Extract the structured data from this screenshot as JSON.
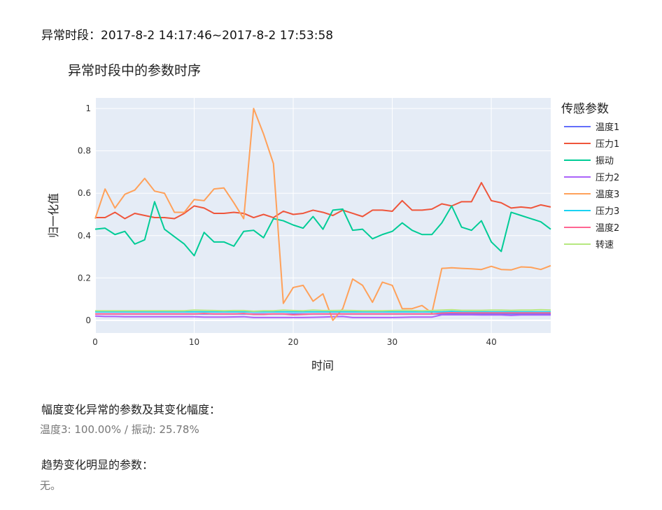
{
  "header": {
    "period_label": "异常时段：",
    "period_value": "2017-8-2 14:17:46~2017-8-2 17:53:58"
  },
  "chart_data": {
    "type": "line",
    "title": "异常时段中的参数时序",
    "xlabel": "时间",
    "ylabel": "归一化值",
    "xlim": [
      0,
      46
    ],
    "ylim": [
      -0.06,
      1.05
    ],
    "xticks": [
      0,
      10,
      20,
      30,
      40
    ],
    "yticks": [
      0,
      0.2,
      0.4,
      0.6,
      0.8,
      1
    ],
    "ytick_labels": [
      "0",
      "0.2",
      "0.4",
      "0.6",
      "0.8",
      "1"
    ],
    "grid": true,
    "legend_title": "传感参数",
    "legend_position": "right",
    "x": [
      0,
      1,
      2,
      3,
      4,
      5,
      6,
      7,
      8,
      9,
      10,
      11,
      12,
      13,
      14,
      15,
      16,
      17,
      18,
      19,
      20,
      21,
      22,
      23,
      24,
      25,
      26,
      27,
      28,
      29,
      30,
      31,
      32,
      33,
      34,
      35,
      36,
      37,
      38,
      39,
      40,
      41,
      42,
      43,
      44,
      45,
      46
    ],
    "series": [
      {
        "name": "温度1",
        "color": "#636efa",
        "values": [
          0.03,
          0.03,
          0.03,
          0.03,
          0.03,
          0.03,
          0.03,
          0.03,
          0.03,
          0.03,
          0.03,
          0.03,
          0.03,
          0.03,
          0.03,
          0.03,
          0.03,
          0.03,
          0.03,
          0.03,
          0.03,
          0.03,
          0.03,
          0.03,
          0.03,
          0.03,
          0.03,
          0.03,
          0.03,
          0.03,
          0.03,
          0.03,
          0.03,
          0.03,
          0.03,
          0.03,
          0.03,
          0.03,
          0.03,
          0.03,
          0.03,
          0.03,
          0.03,
          0.03,
          0.03,
          0.03,
          0.03
        ]
      },
      {
        "name": "压力1",
        "color": "#ef553b",
        "values": [
          0.485,
          0.485,
          0.51,
          0.48,
          0.505,
          0.495,
          0.485,
          0.485,
          0.48,
          0.505,
          0.54,
          0.53,
          0.505,
          0.505,
          0.51,
          0.505,
          0.485,
          0.5,
          0.485,
          0.515,
          0.5,
          0.505,
          0.52,
          0.51,
          0.495,
          0.52,
          0.505,
          0.49,
          0.52,
          0.52,
          0.515,
          0.565,
          0.52,
          0.52,
          0.525,
          0.55,
          0.54,
          0.56,
          0.56,
          0.65,
          0.565,
          0.555,
          0.53,
          0.535,
          0.53,
          0.545,
          0.535
        ]
      },
      {
        "name": "振动",
        "color": "#00cc96",
        "values": [
          0.43,
          0.435,
          0.405,
          0.42,
          0.36,
          0.38,
          0.56,
          0.43,
          0.395,
          0.36,
          0.305,
          0.415,
          0.37,
          0.37,
          0.35,
          0.42,
          0.425,
          0.39,
          0.48,
          0.47,
          0.45,
          0.435,
          0.49,
          0.43,
          0.52,
          0.525,
          0.425,
          0.43,
          0.385,
          0.405,
          0.42,
          0.46,
          0.425,
          0.405,
          0.405,
          0.46,
          0.54,
          0.44,
          0.425,
          0.47,
          0.37,
          0.325,
          0.51,
          0.495,
          0.48,
          0.465,
          0.43
        ]
      },
      {
        "name": "压力2",
        "color": "#ab63fa",
        "values": [
          0.02,
          0.018,
          0.018,
          0.017,
          0.017,
          0.017,
          0.017,
          0.017,
          0.017,
          0.017,
          0.017,
          0.015,
          0.015,
          0.015,
          0.016,
          0.017,
          0.013,
          0.013,
          0.013,
          0.013,
          0.013,
          0.013,
          0.014,
          0.015,
          0.017,
          0.018,
          0.013,
          0.013,
          0.013,
          0.013,
          0.013,
          0.014,
          0.015,
          0.015,
          0.015,
          0.026,
          0.026,
          0.026,
          0.026,
          0.025,
          0.025,
          0.025,
          0.023,
          0.025,
          0.025,
          0.025,
          0.025
        ]
      },
      {
        "name": "温度3",
        "color": "#ffa15a",
        "values": [
          0.48,
          0.62,
          0.53,
          0.595,
          0.615,
          0.67,
          0.61,
          0.6,
          0.51,
          0.51,
          0.57,
          0.565,
          0.62,
          0.625,
          0.555,
          0.48,
          1.0,
          0.88,
          0.74,
          0.08,
          0.155,
          0.165,
          0.09,
          0.125,
          0.0,
          0.055,
          0.195,
          0.165,
          0.085,
          0.18,
          0.165,
          0.055,
          0.055,
          0.07,
          0.035,
          0.245,
          0.248,
          0.245,
          0.243,
          0.24,
          0.255,
          0.24,
          0.238,
          0.252,
          0.25,
          0.24,
          0.258
        ]
      },
      {
        "name": "压力3",
        "color": "#19d3f3",
        "values": [
          0.04,
          0.04,
          0.04,
          0.04,
          0.04,
          0.04,
          0.04,
          0.04,
          0.04,
          0.04,
          0.04,
          0.04,
          0.04,
          0.04,
          0.04,
          0.04,
          0.04,
          0.04,
          0.04,
          0.04,
          0.04,
          0.04,
          0.04,
          0.04,
          0.04,
          0.04,
          0.04,
          0.04,
          0.04,
          0.04,
          0.04,
          0.04,
          0.04,
          0.04,
          0.04,
          0.04,
          0.042,
          0.04,
          0.04,
          0.04,
          0.04,
          0.04,
          0.04,
          0.04,
          0.04,
          0.04,
          0.04
        ]
      },
      {
        "name": "温度2",
        "color": "#ff6692",
        "values": [
          0.03,
          0.03,
          0.03,
          0.03,
          0.03,
          0.03,
          0.03,
          0.03,
          0.03,
          0.03,
          0.03,
          0.032,
          0.03,
          0.03,
          0.03,
          0.032,
          0.028,
          0.028,
          0.03,
          0.03,
          0.026,
          0.028,
          0.03,
          0.03,
          0.03,
          0.03,
          0.03,
          0.03,
          0.03,
          0.03,
          0.03,
          0.03,
          0.03,
          0.03,
          0.03,
          0.034,
          0.036,
          0.035,
          0.035,
          0.035,
          0.035,
          0.035,
          0.035,
          0.035,
          0.035,
          0.035,
          0.035
        ]
      },
      {
        "name": "转速",
        "color": "#b6e880",
        "values": [
          0.045,
          0.045,
          0.045,
          0.045,
          0.045,
          0.045,
          0.045,
          0.045,
          0.045,
          0.045,
          0.048,
          0.047,
          0.046,
          0.045,
          0.046,
          0.046,
          0.043,
          0.045,
          0.045,
          0.048,
          0.046,
          0.045,
          0.048,
          0.046,
          0.046,
          0.047,
          0.046,
          0.045,
          0.045,
          0.045,
          0.046,
          0.047,
          0.046,
          0.045,
          0.046,
          0.048,
          0.05,
          0.047,
          0.047,
          0.047,
          0.048,
          0.048,
          0.047,
          0.048,
          0.048,
          0.05,
          0.048
        ]
      }
    ]
  },
  "sections": {
    "amplitude_label": "幅度变化异常的参数及其变化幅度：",
    "amplitude_value": "温度3: 100.00% / 振动: 25.78%",
    "trend_label": "趋势变化明显的参数：",
    "trend_value": "无。"
  }
}
